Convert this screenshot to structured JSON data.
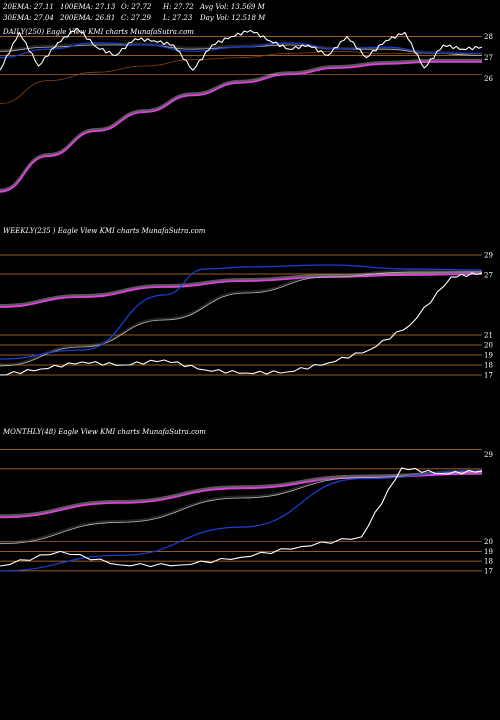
{
  "header": {
    "row1": [
      "20EMA: 27.11",
      "100EMA: 27.13",
      "O: 27.72",
      "H: 27.72",
      "Avg Vol: 13.569  M"
    ],
    "row2": [
      "30EMA: 27.04",
      "200EMA: 26.81",
      "C: 27.29",
      "L: 27.23",
      "Day Vol: 12.518  M"
    ]
  },
  "colors": {
    "price": "#ffffff",
    "ema_short": "#1a3fd6",
    "ema_long": "#e040e0",
    "ema_brown": "#8b4513",
    "ema_grey": "#bbbbbb",
    "grid": "#c8782a"
  },
  "chart_data": [
    {
      "type": "line",
      "label": "DAILY(250) Eagle  View  KMI charts MunafaSutra.com",
      "yticks": [
        28,
        27,
        26
      ],
      "ylim": [
        20.4,
        28.6
      ],
      "gridlines": [
        28,
        27.1,
        26.2
      ],
      "series": [
        {
          "role": "price",
          "x": [
            0,
            10,
            20,
            30,
            40,
            50,
            60,
            70,
            80,
            90,
            100,
            110,
            120,
            130,
            140,
            150,
            160,
            170,
            180,
            190,
            200,
            210,
            220,
            230,
            240,
            250
          ],
          "values": [
            26.4,
            28.2,
            26.6,
            27.7,
            28.4,
            27.5,
            27.1,
            27.9,
            27.8,
            27.6,
            26.4,
            27.6,
            28.0,
            28.3,
            27.8,
            27.4,
            27.6,
            27.1,
            28.0,
            27.0,
            27.8,
            28.2,
            26.5,
            27.6,
            27.4,
            27.5
          ]
        },
        {
          "role": "ema_short",
          "x": [
            0,
            25,
            50,
            75,
            100,
            125,
            150,
            175,
            200,
            225,
            250
          ],
          "values": [
            27.0,
            27.4,
            27.7,
            27.6,
            27.3,
            27.5,
            27.7,
            27.4,
            27.5,
            27.2,
            27.2
          ]
        },
        {
          "role": "ema_grey",
          "x": [
            0,
            25,
            50,
            75,
            100,
            125,
            150,
            175,
            200,
            225,
            250
          ],
          "values": [
            27.3,
            27.5,
            27.6,
            27.6,
            27.4,
            27.5,
            27.6,
            27.4,
            27.4,
            27.2,
            27.1
          ]
        },
        {
          "role": "ema_brown",
          "x": [
            0,
            25,
            50,
            75,
            100,
            125,
            150,
            175,
            200,
            225,
            250
          ],
          "values": [
            24.8,
            25.9,
            26.3,
            26.6,
            26.9,
            27.0,
            27.2,
            27.3,
            27.2,
            27.2,
            27.1
          ]
        },
        {
          "role": "ema_long",
          "x": [
            0,
            25,
            50,
            75,
            100,
            125,
            150,
            175,
            200,
            225,
            250
          ],
          "values": [
            20.6,
            22.3,
            23.5,
            24.4,
            25.2,
            25.8,
            26.2,
            26.5,
            26.7,
            26.8,
            26.8
          ]
        }
      ]
    },
    {
      "type": "line",
      "label": "WEEKLY(235                ) Eagle  View  KMI charts MunafaSutra.com",
      "yticks": [
        29,
        27,
        21,
        20,
        19,
        18,
        17
      ],
      "ylim": [
        14.5,
        31.5
      ],
      "gridlines": [
        29,
        27.1,
        21.0,
        20.0,
        19.0,
        18.0,
        17.0
      ],
      "series": [
        {
          "role": "price",
          "x": [
            0,
            20,
            40,
            60,
            80,
            100,
            120,
            140,
            160,
            180,
            200,
            220,
            235
          ],
          "values": [
            17.0,
            17.6,
            18.3,
            18.0,
            18.5,
            17.5,
            17.2,
            17.3,
            18.2,
            19.5,
            22.0,
            26.8,
            27.2
          ]
        },
        {
          "role": "ema_short",
          "x": [
            0,
            40,
            80,
            100,
            120,
            160,
            200,
            235
          ],
          "values": [
            18.6,
            19.5,
            25.0,
            27.6,
            27.8,
            28.0,
            27.6,
            27.5
          ]
        },
        {
          "role": "ema_grey",
          "x": [
            0,
            40,
            80,
            120,
            160,
            200,
            235
          ],
          "values": [
            17.9,
            19.8,
            22.5,
            25.2,
            26.8,
            27.3,
            27.3
          ]
        },
        {
          "role": "ema_long",
          "x": [
            0,
            40,
            80,
            120,
            160,
            200,
            235
          ],
          "values": [
            23.8,
            24.8,
            25.8,
            26.4,
            26.8,
            27.0,
            27.1
          ]
        }
      ]
    },
    {
      "type": "line",
      "label": "MONTHLY(48) Eagle  View  KMI charts MunafaSutra.com",
      "yticks": [
        29,
        20,
        19,
        18,
        17
      ],
      "ylim": [
        14.0,
        31.5
      ],
      "gridlines": [
        29.5,
        27.5,
        20.0,
        19.0,
        18.0,
        17.0
      ],
      "series": [
        {
          "role": "price",
          "x": [
            0,
            6,
            12,
            18,
            24,
            30,
            36,
            40,
            44,
            48
          ],
          "values": [
            17.5,
            19.0,
            17.6,
            17.6,
            18.4,
            19.5,
            20.5,
            27.6,
            27.0,
            27.3
          ]
        },
        {
          "role": "ema_short",
          "x": [
            0,
            12,
            24,
            36,
            48
          ],
          "values": [
            17.0,
            18.6,
            21.5,
            26.5,
            27.3
          ]
        },
        {
          "role": "ema_grey",
          "x": [
            0,
            12,
            24,
            36,
            48
          ],
          "values": [
            19.8,
            22.0,
            24.5,
            26.6,
            27.2
          ]
        },
        {
          "role": "ema_long",
          "x": [
            0,
            12,
            24,
            36,
            48
          ],
          "values": [
            22.5,
            24.0,
            25.5,
            26.6,
            27.0
          ]
        }
      ]
    }
  ]
}
